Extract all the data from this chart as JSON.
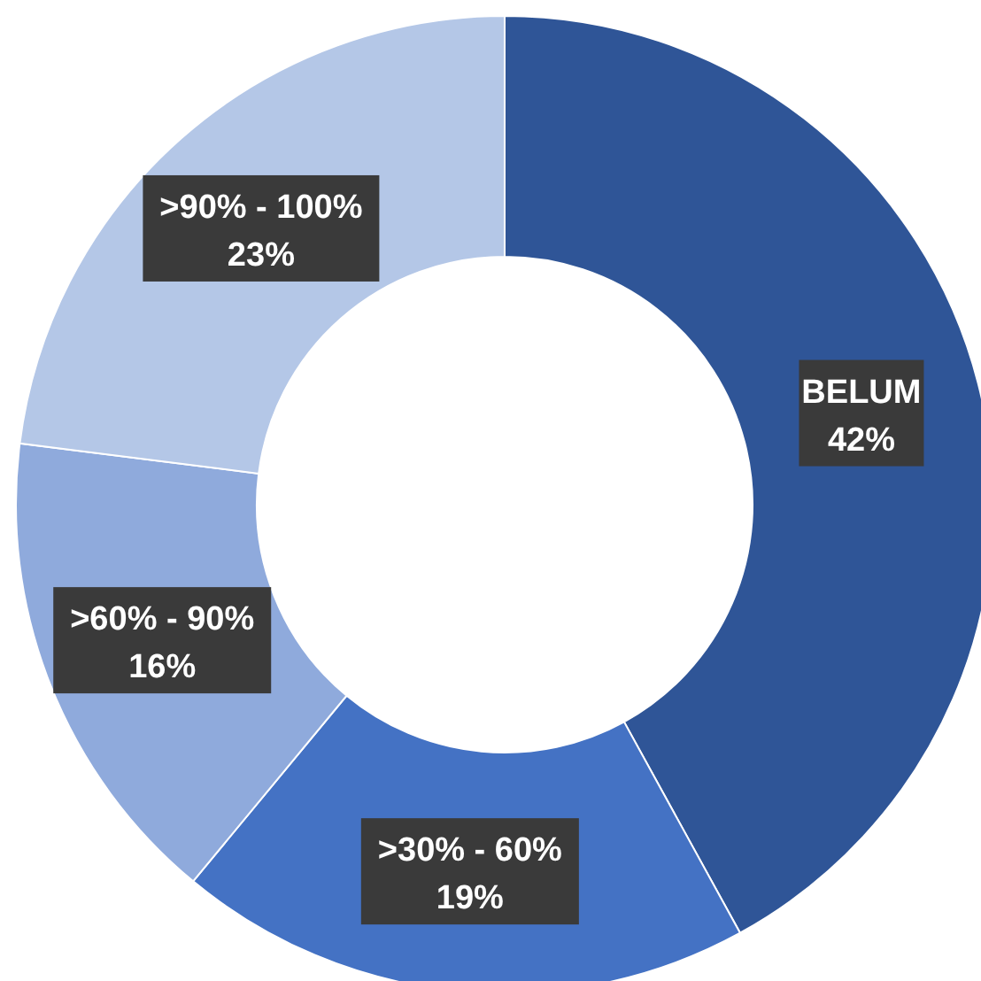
{
  "chart_data": {
    "type": "donut",
    "categories": [
      "BELUM",
      ">30% - 60%",
      ">60% - 90%",
      ">90% - 100%"
    ],
    "values": [
      42,
      19,
      16,
      23
    ],
    "value_labels": [
      "42%",
      "19%",
      "16%",
      "23%"
    ],
    "colors": [
      "#2f5597",
      "#4472c4",
      "#8faadc",
      "#b4c7e7"
    ]
  }
}
